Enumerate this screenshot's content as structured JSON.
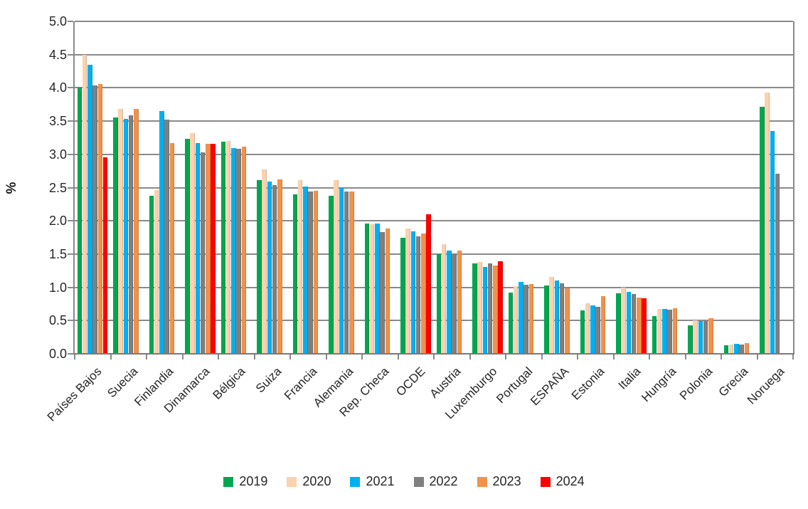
{
  "chart_data": {
    "type": "bar",
    "title": "",
    "ylabel": "%",
    "ylim": [
      0,
      5
    ],
    "ytick_step": 0.5,
    "grid": true,
    "legend_position": "bottom",
    "categories": [
      "Países Bajos",
      "Suecia",
      "Finlandia",
      "Dinamarca",
      "Bélgica",
      "Suiza",
      "Francia",
      "Alemania",
      "Rep. Checa",
      "OCDE",
      "Austria",
      "Luxemburgo",
      "Portugal",
      "ESPAÑA",
      "Estonia",
      "Italia",
      "Hungría",
      "Polonia",
      "Grecia",
      "Noruega"
    ],
    "series": [
      {
        "name": "2019",
        "color": "#00A651",
        "values": [
          4.0,
          3.55,
          2.38,
          3.23,
          3.19,
          2.61,
          2.4,
          2.38,
          1.96,
          1.74,
          1.5,
          1.36,
          0.92,
          1.03,
          0.65,
          0.91,
          0.57,
          0.43,
          0.13,
          3.72
        ]
      },
      {
        "name": "2020",
        "color": "#FAD2AE",
        "values": [
          4.5,
          3.68,
          2.46,
          3.32,
          3.2,
          2.77,
          2.61,
          2.61,
          1.95,
          1.88,
          1.65,
          1.38,
          1.02,
          1.16,
          0.76,
          1.0,
          0.67,
          0.5,
          0.14,
          3.93
        ]
      },
      {
        "name": "2021",
        "color": "#00B0F0",
        "values": [
          4.35,
          3.53,
          3.65,
          3.17,
          3.09,
          2.59,
          2.52,
          2.5,
          1.96,
          1.84,
          1.55,
          1.31,
          1.08,
          1.1,
          0.73,
          0.93,
          0.67,
          0.49,
          0.15,
          3.35
        ]
      },
      {
        "name": "2022",
        "color": "#7F7F7F",
        "values": [
          4.04,
          3.59,
          3.52,
          3.03,
          3.08,
          2.54,
          2.44,
          2.44,
          1.83,
          1.77,
          1.51,
          1.36,
          1.04,
          1.06,
          0.71,
          0.9,
          0.66,
          0.49,
          0.14,
          2.71
        ]
      },
      {
        "name": "2023",
        "color": "#F0924C",
        "values": [
          4.06,
          3.68,
          3.17,
          3.16,
          3.12,
          2.62,
          2.45,
          2.44,
          1.88,
          1.81,
          1.55,
          1.33,
          1.05,
          0.98,
          0.87,
          0.85,
          0.69,
          0.54,
          0.16,
          null
        ]
      },
      {
        "name": "2024",
        "color": "#FF0000",
        "values": [
          2.96,
          null,
          null,
          3.16,
          null,
          null,
          null,
          null,
          null,
          2.1,
          null,
          1.39,
          null,
          null,
          null,
          0.84,
          null,
          null,
          null,
          null
        ]
      }
    ]
  }
}
